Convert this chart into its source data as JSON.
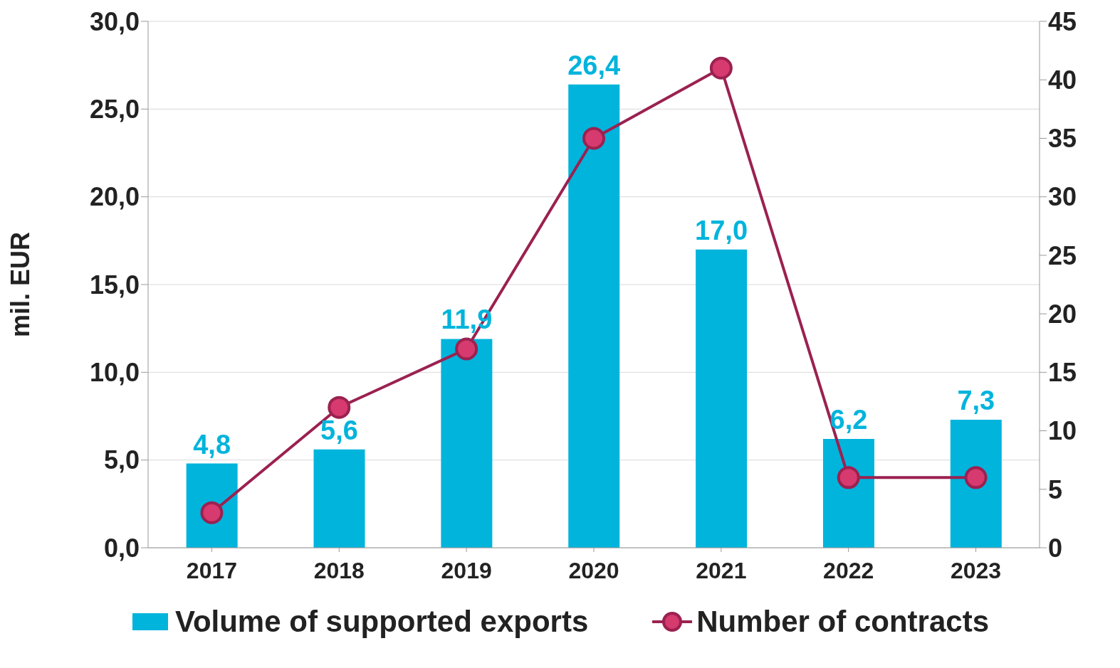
{
  "chart_data": {
    "type": "bar",
    "ylabel": "mil. EUR",
    "categories": [
      "2017",
      "2018",
      "2019",
      "2020",
      "2021",
      "2022",
      "2023"
    ],
    "series": [
      {
        "name": "Volume of supported exports",
        "color": "#00b4dc",
        "values": [
          4.8,
          5.6,
          11.9,
          26.4,
          17.0,
          6.2,
          7.3
        ],
        "value_labels": [
          "4,8",
          "5,6",
          "11,9",
          "26,4",
          "17,0",
          "6,2",
          "7,3"
        ]
      },
      {
        "name": "Number of contracts",
        "type": "line",
        "axis": "y2",
        "color": "#9b2150",
        "values": [
          3,
          12,
          17,
          35,
          41,
          6,
          6
        ]
      }
    ],
    "ylim": [
      0,
      30
    ],
    "yticks": [
      {
        "value": 0,
        "label": "0,0"
      },
      {
        "value": 5,
        "label": "5,0"
      },
      {
        "value": 10,
        "label": "10,0"
      },
      {
        "value": 15,
        "label": "15,0"
      },
      {
        "value": 20,
        "label": "20,0"
      },
      {
        "value": 25,
        "label": "25,0"
      },
      {
        "value": 30,
        "label": "30,0"
      }
    ],
    "y2lim": [
      0,
      45
    ],
    "y2ticks": [
      0,
      5,
      10,
      15,
      20,
      25,
      30,
      35,
      40,
      45
    ],
    "grid": "y",
    "legend": "bottom",
    "marker": "circle",
    "line_style": "solid"
  }
}
